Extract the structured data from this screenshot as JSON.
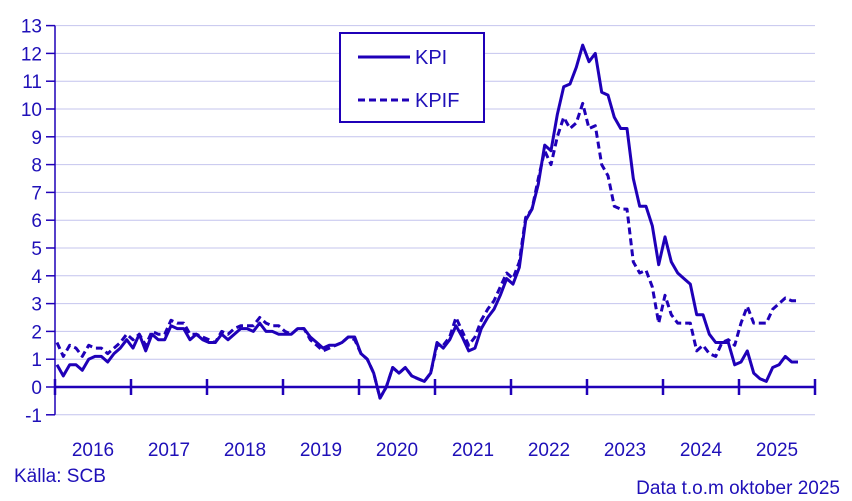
{
  "chart_data": {
    "type": "line",
    "title": "",
    "xlabel": "",
    "ylabel": "",
    "ylim": [
      -1,
      13
    ],
    "yticks": [
      -1,
      0,
      1,
      2,
      3,
      4,
      5,
      6,
      7,
      8,
      9,
      10,
      11,
      12,
      13
    ],
    "xtick_labels": [
      "2016",
      "2017",
      "2018",
      "2019",
      "2020",
      "2021",
      "2022",
      "2023",
      "2024",
      "2025"
    ],
    "grid": true,
    "legend": {
      "position": "upper-center",
      "entries": [
        "KPI",
        "KPIF"
      ]
    },
    "frequency": "monthly",
    "start": "2016-01",
    "end": "2025-10",
    "series": [
      {
        "name": "KPI",
        "style": "solid",
        "color": "#1f00b8",
        "values": [
          0.8,
          0.4,
          0.8,
          0.8,
          0.6,
          1.0,
          1.1,
          1.1,
          0.9,
          1.2,
          1.4,
          1.7,
          1.4,
          1.9,
          1.3,
          1.9,
          1.7,
          1.7,
          2.2,
          2.1,
          2.1,
          1.7,
          1.9,
          1.7,
          1.6,
          1.6,
          1.9,
          1.7,
          1.9,
          2.1,
          2.1,
          2.0,
          2.3,
          2.0,
          2.0,
          1.9,
          1.9,
          1.9,
          2.1,
          2.1,
          1.8,
          1.6,
          1.4,
          1.5,
          1.5,
          1.6,
          1.8,
          1.8,
          1.2,
          1.0,
          0.5,
          -0.4,
          0.0,
          0.7,
          0.5,
          0.7,
          0.4,
          0.3,
          0.2,
          0.5,
          1.6,
          1.4,
          1.7,
          2.2,
          1.8,
          1.3,
          1.4,
          2.1,
          2.5,
          2.8,
          3.3,
          3.9,
          3.7,
          4.3,
          6.0,
          6.4,
          7.3,
          8.7,
          8.5,
          9.8,
          10.8,
          10.9,
          11.5,
          12.3,
          11.7,
          12.0,
          10.6,
          10.5,
          9.7,
          9.3,
          9.3,
          7.5,
          6.5,
          6.5,
          5.8,
          4.4,
          5.4,
          4.5,
          4.1,
          3.9,
          3.7,
          2.6,
          2.6,
          1.9,
          1.6,
          1.6,
          1.6,
          0.8,
          0.9,
          1.3,
          0.5,
          0.3,
          0.2,
          0.7,
          0.8,
          1.1,
          0.9,
          0.9
        ]
      },
      {
        "name": "KPIF",
        "style": "dashed",
        "color": "#1f00b8",
        "values": [
          1.6,
          1.1,
          1.5,
          1.4,
          1.1,
          1.5,
          1.4,
          1.4,
          1.2,
          1.4,
          1.6,
          1.9,
          1.7,
          1.9,
          1.5,
          2.0,
          1.9,
          1.9,
          2.4,
          2.3,
          2.3,
          1.9,
          1.9,
          1.8,
          1.7,
          1.6,
          2.0,
          1.9,
          2.1,
          2.2,
          2.2,
          2.2,
          2.5,
          2.3,
          2.2,
          2.2,
          2.0,
          1.9,
          2.1,
          2.1,
          1.7,
          1.5,
          1.3,
          1.4,
          1.5,
          1.6,
          1.8,
          1.7,
          1.2,
          1.0,
          0.5,
          -0.4,
          0.0,
          0.7,
          0.5,
          0.7,
          0.4,
          0.3,
          0.2,
          0.5,
          1.5,
          1.5,
          1.8,
          2.5,
          2.0,
          1.5,
          1.8,
          2.4,
          2.8,
          3.1,
          3.6,
          4.1,
          3.9,
          4.5,
          6.1,
          6.4,
          7.5,
          8.5,
          8.0,
          9.0,
          9.7,
          9.3,
          9.5,
          10.2,
          9.3,
          9.4,
          8.0,
          7.6,
          6.5,
          6.4,
          6.4,
          4.5,
          4.1,
          4.2,
          3.6,
          2.3,
          3.3,
          2.6,
          2.3,
          2.3,
          2.3,
          1.3,
          1.5,
          1.2,
          1.1,
          1.6,
          1.7,
          1.5,
          2.3,
          2.9,
          2.3,
          2.3,
          2.3,
          2.8,
          3.0,
          3.2,
          3.1,
          3.1
        ]
      }
    ]
  },
  "legend": {
    "kpi_label": "KPI",
    "kpif_label": "KPIF"
  },
  "footer": {
    "source": "Källa: SCB",
    "note": "Data t.o.m oktober 2025"
  },
  "colors": {
    "line": "#1f00b8",
    "text": "#1f10b8",
    "grid": "#c4c4ee",
    "axis": "#1f00b8"
  }
}
